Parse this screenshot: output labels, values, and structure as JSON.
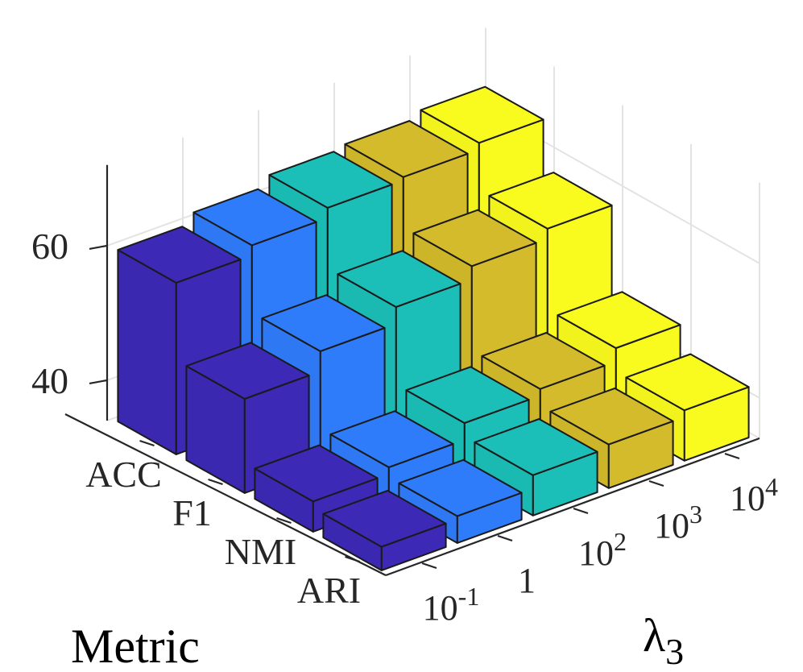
{
  "chart_data": {
    "type": "bar3d",
    "xlabel": "Metric",
    "ylabel": "λ3",
    "zlabel": "",
    "categories": [
      "ACC",
      "F1",
      "NMI",
      "ARI"
    ],
    "lambda_labels": [
      {
        "base": "10",
        "exp": "-1"
      },
      {
        "base": "1",
        "exp": ""
      },
      {
        "base": "10",
        "exp": "2"
      },
      {
        "base": "10",
        "exp": "3"
      },
      {
        "base": "10",
        "exp": "4"
      }
    ],
    "zticks": [
      "40",
      "60"
    ],
    "zlim": [
      34,
      72
    ],
    "colors": [
      "#3c29b6",
      "#2f7cfb",
      "#1bbfb7",
      "#d3bb2b",
      "#f9fa1e"
    ],
    "series": [
      {
        "lambda": "10^-1",
        "values": [
          59.5,
          48.0,
          38.5,
          37.5
        ]
      },
      {
        "lambda": "1",
        "values": [
          61.0,
          51.0,
          39.5,
          38.0
        ]
      },
      {
        "lambda": "10^2",
        "values": [
          62.5,
          53.5,
          42.0,
          40.0
        ]
      },
      {
        "lambda": "10^3",
        "values": [
          63.0,
          55.5,
          43.0,
          40.5
        ]
      },
      {
        "lambda": "10^4",
        "values": [
          64.0,
          57.0,
          45.0,
          41.5
        ]
      }
    ]
  }
}
